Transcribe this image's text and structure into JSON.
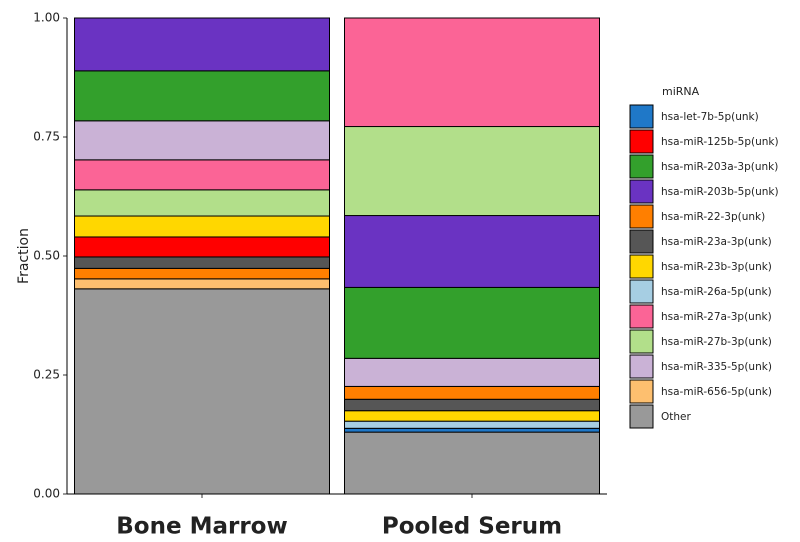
{
  "chart_data": {
    "type": "stacked_bar",
    "y_label": "Fraction",
    "categories": [
      "Bone Marrow",
      "Pooled Serum"
    ],
    "ylim": [
      0,
      1
    ],
    "yticks": [
      {
        "value": 0,
        "label": "0.00"
      },
      {
        "value": 0.25,
        "label": "0.25"
      },
      {
        "value": 0.5,
        "label": "0.50"
      },
      {
        "value": 0.75,
        "label": "0.75"
      },
      {
        "value": 1,
        "label": "1.00"
      }
    ],
    "legend_title": "miRNA",
    "legend": "right",
    "series": [
      {
        "name": "hsa-let-7b-5p(unk)",
        "color": "#1f78c8",
        "values": [
          0,
          0.008
        ]
      },
      {
        "name": "hsa-miR-125b-5p(unk)",
        "color": "#ff0000",
        "values": [
          0.042,
          0
        ]
      },
      {
        "name": "hsa-miR-203a-3p(unk)",
        "color": "#33a02c",
        "values": [
          0.105,
          0.149
        ]
      },
      {
        "name": "hsa-miR-203b-5p(unk)",
        "color": "#6a33c2",
        "values": [
          0.111,
          0.151
        ]
      },
      {
        "name": "hsa-miR-22-3p(unk)",
        "color": "#ff7f00",
        "values": [
          0.022,
          0.027
        ]
      },
      {
        "name": "hsa-miR-23a-3p(unk)",
        "color": "#565656",
        "values": [
          0.024,
          0.024
        ]
      },
      {
        "name": "hsa-miR-23b-3p(unk)",
        "color": "#ffd700",
        "values": [
          0.044,
          0.022
        ]
      },
      {
        "name": "hsa-miR-26a-5p(unk)",
        "color": "#a6cee3",
        "values": [
          0,
          0.015
        ]
      },
      {
        "name": "hsa-miR-27a-3p(unk)",
        "color": "#fb6496",
        "values": [
          0.063,
          0.228
        ]
      },
      {
        "name": "hsa-miR-27b-3p(unk)",
        "color": "#b2df8a",
        "values": [
          0.055,
          0.187
        ]
      },
      {
        "name": "hsa-miR-335-5p(unk)",
        "color": "#cab2d6",
        "values": [
          0.082,
          0.059
        ]
      },
      {
        "name": "hsa-miR-656-5p(unk)",
        "color": "#fdbf6f",
        "values": [
          0.021,
          0
        ]
      },
      {
        "name": "Other",
        "color": "#999999",
        "values": [
          0.431,
          0.13
        ]
      }
    ]
  }
}
